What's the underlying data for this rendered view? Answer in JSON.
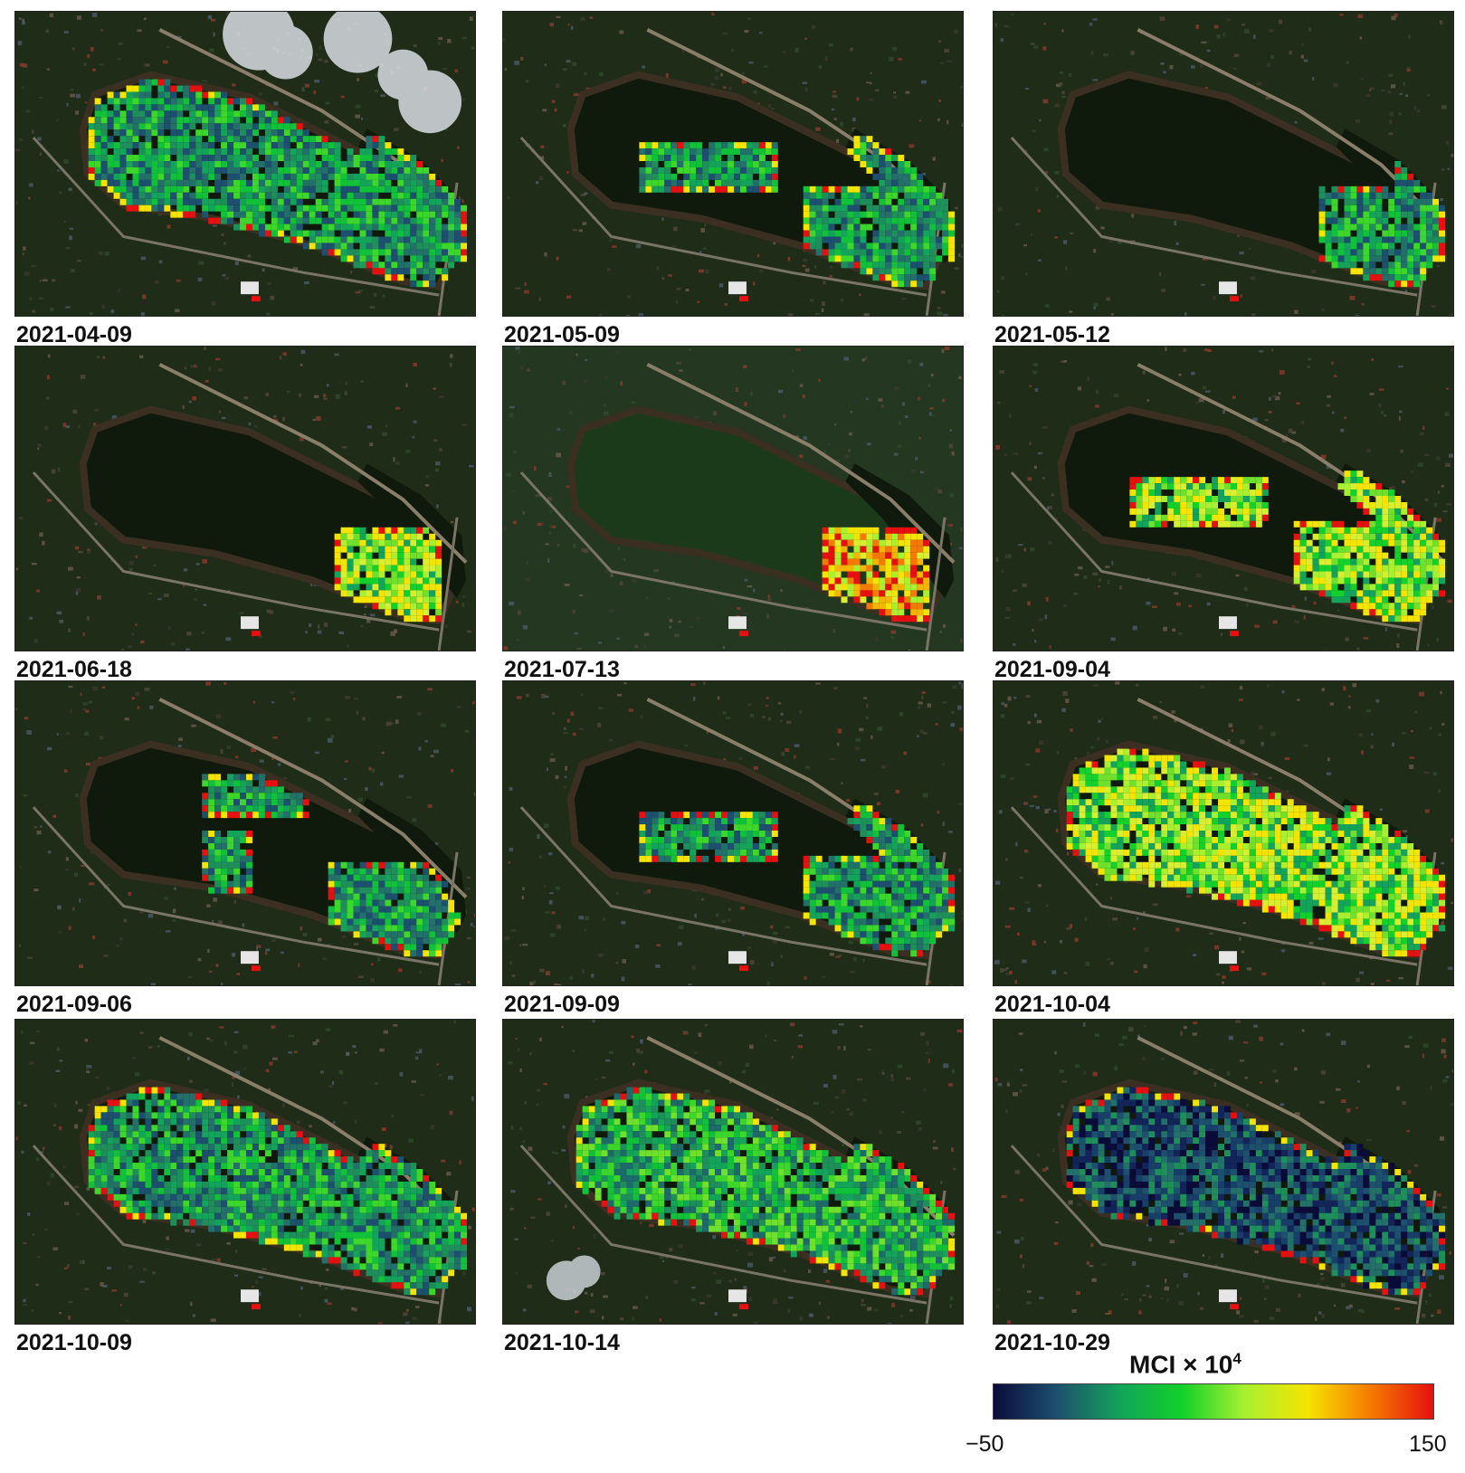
{
  "figure": {
    "panels": [
      {
        "date": "2021-04-09",
        "cloud": true,
        "haze": false,
        "patch": "large",
        "palette": "mixed"
      },
      {
        "date": "2021-05-09",
        "cloud": false,
        "haze": false,
        "patch": "medium",
        "palette": "mixed"
      },
      {
        "date": "2021-05-12",
        "cloud": false,
        "haze": false,
        "patch": "small",
        "palette": "mixed"
      },
      {
        "date": "2021-06-18",
        "cloud": false,
        "haze": false,
        "patch": "tiny",
        "palette": "light"
      },
      {
        "date": "2021-07-13",
        "cloud": false,
        "haze": true,
        "patch": "tiny",
        "palette": "hot"
      },
      {
        "date": "2021-09-04",
        "cloud": false,
        "haze": false,
        "patch": "medium",
        "palette": "light"
      },
      {
        "date": "2021-09-06",
        "cloud": false,
        "haze": false,
        "patch": "sparse",
        "palette": "mixed"
      },
      {
        "date": "2021-09-09",
        "cloud": false,
        "haze": false,
        "patch": "medium",
        "palette": "mixed"
      },
      {
        "date": "2021-10-04",
        "cloud": false,
        "haze": false,
        "patch": "large",
        "palette": "light"
      },
      {
        "date": "2021-10-09",
        "cloud": false,
        "haze": false,
        "patch": "large",
        "palette": "mixed"
      },
      {
        "date": "2021-10-14",
        "cloud": true,
        "haze": false,
        "patch": "large",
        "palette": "green"
      },
      {
        "date": "2021-10-29",
        "cloud": false,
        "haze": false,
        "patch": "large",
        "palette": "dark"
      }
    ],
    "legend": {
      "title_main": "MCI × 10",
      "title_exp": "4",
      "min_label": "−50",
      "max_label": "150",
      "min": -50,
      "max": 150,
      "colors": [
        "#0b0b3a",
        "#1d4f6e",
        "#13a35a",
        "#12d12a",
        "#a8f030",
        "#f5e400",
        "#f57a00",
        "#e61010"
      ]
    }
  }
}
